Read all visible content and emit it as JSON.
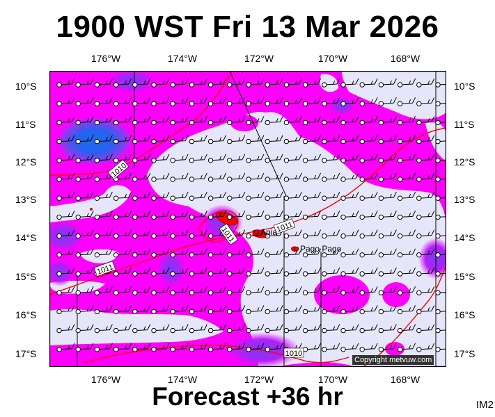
{
  "header": {
    "title": "1900 WST Fri 13 Mar 2026"
  },
  "footer": {
    "forecast": "Forecast +36 hr",
    "corner_code": "IM2"
  },
  "map": {
    "lon_ticks": [
      "176°W",
      "174°W",
      "172°W",
      "170°W",
      "168°W"
    ],
    "lat_ticks": [
      "10°S",
      "11°S",
      "12°S",
      "13°S",
      "14°S",
      "15°S",
      "16°S",
      "17°S"
    ],
    "isobar_labels": [
      "1010",
      "1011",
      "1011",
      "1011",
      "1010"
    ],
    "places": [
      "Apia",
      "Pago Pago"
    ],
    "copyright": "Copyright metvuw.com",
    "colors": {
      "magenta": "#ff00ff",
      "pale": "#e6e6fa",
      "purple": "#8b3cf0",
      "blue": "#1a6cf0",
      "isobar": "#ff0000"
    }
  }
}
